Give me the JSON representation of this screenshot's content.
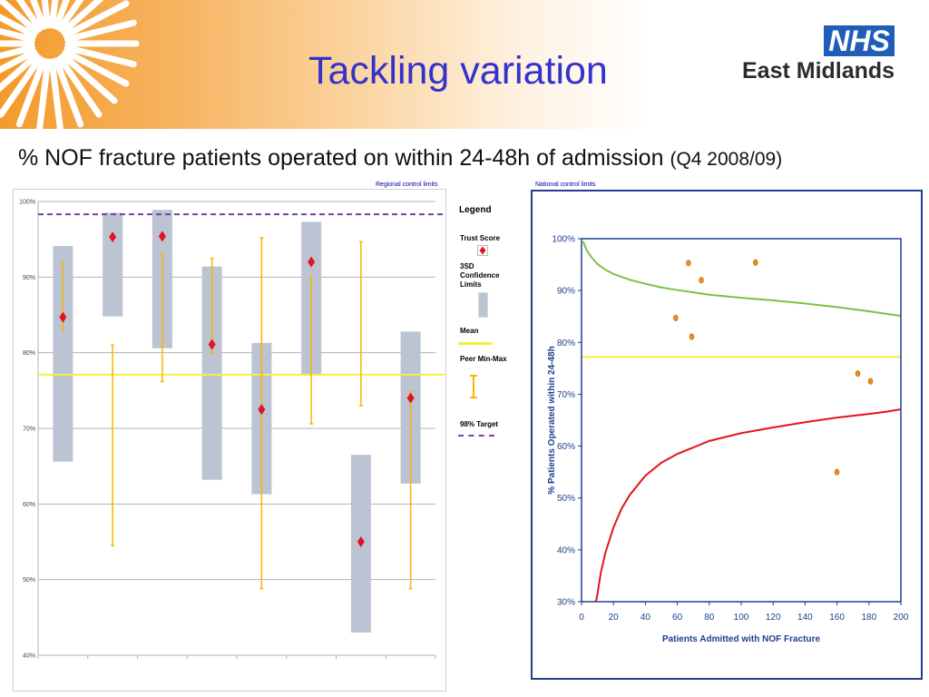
{
  "slide": {
    "title": "Tackling variation",
    "subtitle_main": "% NOF fracture patients operated on within 24-48h of admission",
    "subtitle_period": "(Q4 2008/09)"
  },
  "branding": {
    "badge": "NHS",
    "region": "East Midlands",
    "badge_color": "#1f5db8",
    "header_color": "#f39a2b"
  },
  "captions": {
    "regional": "Regional control limits",
    "national": "National control limits"
  },
  "legend": {
    "title": "Legend",
    "trust_score": "Trust Score",
    "confidence_limits": "3SD Confidence Limits",
    "mean": "Mean",
    "peer_min_max": "Peer Min-Max",
    "target": "98% Target"
  },
  "chart_data": [
    {
      "type": "scatter",
      "title": "Regional control limits",
      "yticks": [
        "100%",
        "90%",
        "80%",
        "70%",
        "60%",
        "50%",
        "40%"
      ],
      "ylim": [
        40,
        100
      ],
      "mean": 77.1,
      "target": 98.3,
      "series": [
        {
          "name": "Trust Score",
          "values": [
            84.7,
            95.3,
            95.4,
            81.1,
            72.5,
            92.0,
            55.0,
            74.0
          ]
        },
        {
          "name": "3SD Confidence Limits",
          "values": [
            [
              65.6,
              94.1
            ],
            [
              84.8,
              98.5
            ],
            [
              80.6,
              98.9
            ],
            [
              63.2,
              91.4
            ],
            [
              61.3,
              81.3
            ],
            [
              77.0,
              97.3
            ],
            [
              43.0,
              66.5
            ],
            [
              62.7,
              82.8
            ]
          ]
        },
        {
          "name": "Peer Min-Max",
          "values": [
            [
              82.9,
              92.0
            ],
            [
              54.5,
              81.0
            ],
            [
              76.2,
              93.1
            ],
            [
              80.0,
              92.5
            ],
            [
              48.8,
              95.2
            ],
            [
              70.6,
              90.1
            ],
            [
              73.0,
              94.7
            ],
            [
              48.8,
              74.9
            ]
          ]
        }
      ],
      "colors": {
        "trust": "#e0141e",
        "cl": "#bcc3d3",
        "mean": "#f2f23a",
        "minmax": "#f5b800",
        "target": "#7a3fa5"
      }
    },
    {
      "type": "line",
      "title": "National control limits",
      "xlabel": "Patients Admitted with NOF Fracture",
      "ylabel": "% Patients Operated within 24-48h",
      "xlim": [
        0,
        200
      ],
      "ylim": [
        30,
        100
      ],
      "xticks": [
        "0",
        "20",
        "40",
        "60",
        "80",
        "100",
        "120",
        "140",
        "160",
        "180",
        "200"
      ],
      "yticks": [
        "100%",
        "90%",
        "80%",
        "70%",
        "60%",
        "50%",
        "40%",
        "30%"
      ],
      "mean": 77.2,
      "series": [
        {
          "name": "Upper control limit",
          "color": "#7cc242",
          "x": [
            1,
            3,
            6,
            10,
            15,
            20,
            30,
            40,
            50,
            60,
            80,
            100,
            120,
            140,
            160,
            180,
            200
          ],
          "y": [
            99.5,
            97.9,
            96.5,
            95.1,
            94.0,
            93.2,
            92.1,
            91.3,
            90.6,
            90.1,
            89.2,
            88.6,
            88.1,
            87.5,
            86.8,
            86.0,
            85.1
          ]
        },
        {
          "name": "Lower control limit",
          "color": "#e3151b",
          "x": [
            9,
            10,
            12,
            15,
            20,
            25,
            30,
            40,
            50,
            60,
            80,
            100,
            120,
            140,
            160,
            180,
            190,
            200
          ],
          "y": [
            30.0,
            31.5,
            35.5,
            39.5,
            44.3,
            47.9,
            50.5,
            54.3,
            56.8,
            58.5,
            61.0,
            62.5,
            63.6,
            64.6,
            65.5,
            66.2,
            66.6,
            67.1
          ]
        },
        {
          "name": "Trusts",
          "color": "#f28c1e",
          "x": [
            59,
            67,
            69,
            75,
            109,
            173,
            181,
            160
          ],
          "y": [
            84.7,
            95.3,
            81.1,
            92.0,
            95.4,
            74.0,
            72.5,
            55.0
          ]
        }
      ]
    }
  ]
}
